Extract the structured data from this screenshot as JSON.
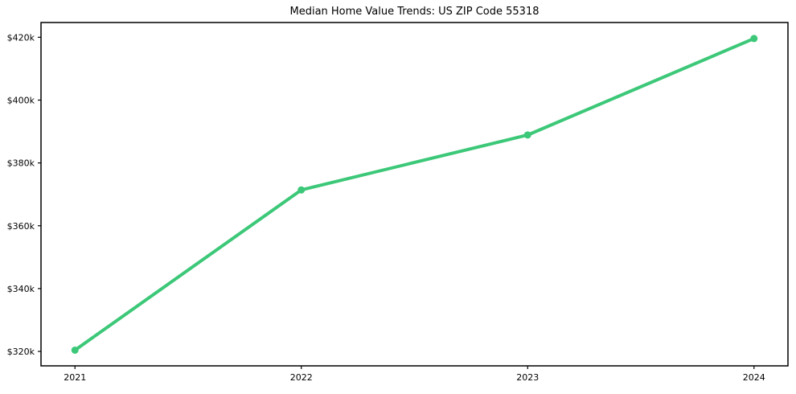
{
  "chart_data": {
    "type": "line",
    "title": "Median Home Value Trends: US ZIP Code 55318",
    "x": [
      2021,
      2022,
      2023,
      2024
    ],
    "values": [
      320400,
      371400,
      388900,
      419600
    ],
    "xlabel": "",
    "ylabel": "",
    "xlim": [
      2020.85,
      2024.15
    ],
    "ylim": [
      315400,
      424700
    ],
    "xticks": [
      2021,
      2022,
      2023,
      2024
    ],
    "xtick_labels": [
      "2021",
      "2022",
      "2023",
      "2024"
    ],
    "yticks": [
      320000,
      340000,
      360000,
      380000,
      400000,
      420000
    ],
    "ytick_labels": [
      "$320k",
      "$340k",
      "$360k",
      "$380k",
      "$400k",
      "$420k"
    ],
    "grid": false,
    "legend": false,
    "line_color": "#3cc878",
    "marker": "circle",
    "marker_size": 4.5,
    "line_width": 4,
    "axis_color": "#000000",
    "background_color": "#ffffff",
    "text_color": "#000000"
  }
}
